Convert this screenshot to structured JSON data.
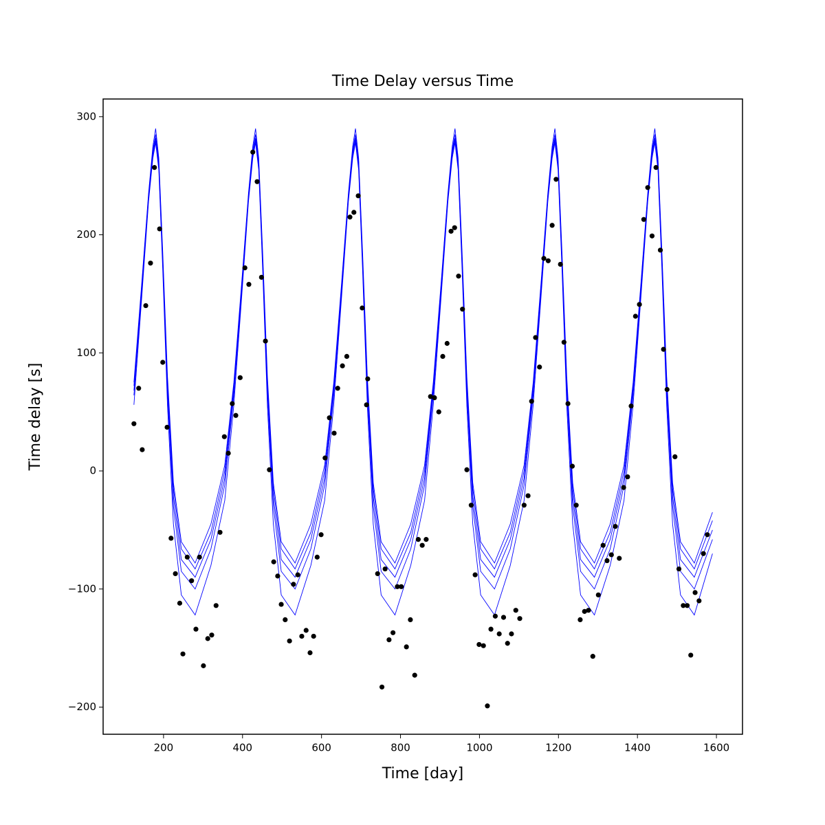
{
  "chart_data": {
    "type": "scatter",
    "title": "Time Delay versus Time",
    "x_label": "Time [day]",
    "y_label": "Time delay [s]",
    "xlim": [
      47,
      1666
    ],
    "ylim": [
      -223,
      315
    ],
    "xticks": [
      200,
      400,
      600,
      800,
      1000,
      1200,
      1400,
      1600
    ],
    "yticks": [
      {
        "value": -200,
        "label": "−200"
      },
      {
        "value": -100,
        "label": "−100"
      },
      0,
      100,
      200,
      300
    ],
    "points": {
      "color": "#000000",
      "x": [
        125,
        137,
        146,
        155,
        167,
        177,
        190,
        198,
        209,
        219,
        230,
        241,
        249,
        260,
        271,
        282,
        291,
        301,
        312,
        322,
        333,
        343,
        354,
        364,
        374,
        383,
        394,
        406,
        416,
        426,
        437,
        448,
        458,
        468,
        479,
        489,
        498,
        508,
        519,
        529,
        540,
        550,
        561,
        571,
        580,
        589,
        599,
        609,
        620,
        632,
        641,
        653,
        664,
        672,
        682,
        693,
        703,
        717,
        714,
        742,
        753,
        761,
        771,
        781,
        792,
        802,
        815,
        825,
        836,
        845,
        855,
        865,
        876,
        886,
        897,
        907,
        918,
        928,
        937,
        947,
        957,
        968,
        979,
        989,
        999,
        1010,
        1020,
        1029,
        1040,
        1050,
        1061,
        1071,
        1081,
        1092,
        1102,
        1113,
        1123,
        1132,
        1142,
        1152,
        1163,
        1174,
        1184,
        1194,
        1205,
        1214,
        1224,
        1235,
        1245,
        1255,
        1266,
        1276,
        1287,
        1301,
        1313,
        1323,
        1334,
        1344,
        1354,
        1365,
        1375,
        1384,
        1395,
        1405,
        1416,
        1426,
        1437,
        1447,
        1458,
        1466,
        1475,
        1495,
        1505,
        1516,
        1526,
        1535,
        1546,
        1556,
        1567,
        1577
      ],
      "y": [
        40,
        70,
        18,
        140,
        176,
        257,
        205,
        92,
        37,
        -57,
        -87,
        -112,
        -155,
        -73,
        -93,
        -134,
        -73,
        -165,
        -142,
        -139,
        -114,
        -52,
        29,
        15,
        57,
        47,
        79,
        172,
        158,
        270,
        245,
        164,
        110,
        1,
        -77,
        -89,
        -113,
        -126,
        -144,
        -96,
        -88,
        -140,
        -135,
        -154,
        -140,
        -73,
        -54,
        11,
        45,
        32,
        70,
        89,
        97,
        215,
        219,
        233,
        138,
        78,
        56,
        -87,
        -183,
        -83,
        -143,
        -137,
        -98,
        -98,
        -149,
        -126,
        -173,
        -58,
        -63,
        -58,
        63,
        62,
        50,
        97,
        108,
        203,
        206,
        165,
        137,
        1,
        -29,
        -88,
        -147,
        -148,
        -199,
        -134,
        -123,
        -138,
        -124,
        -146,
        -138,
        -118,
        -125,
        -29,
        -21,
        59,
        113,
        88,
        180,
        178,
        208,
        247,
        175,
        109,
        57,
        4,
        -29,
        -126,
        -119,
        -118,
        -157,
        -105,
        -63,
        -76,
        -71,
        -47,
        -74,
        -14,
        -5,
        55,
        131,
        141,
        213,
        240,
        199,
        257,
        187,
        103,
        69,
        12,
        -83,
        -114,
        -114,
        -156,
        -103,
        -110,
        -70,
        -54
      ]
    },
    "curves": {
      "x": [
        125,
        145,
        162,
        173,
        180,
        188,
        198,
        210,
        225,
        245,
        280,
        320,
        355,
        378,
        398,
        415,
        426,
        433,
        441,
        451,
        463,
        478,
        498,
        533,
        573,
        608,
        631,
        651,
        668,
        679,
        686,
        694,
        704,
        716,
        731,
        751,
        786,
        826,
        861,
        883,
        903,
        920,
        931,
        938,
        946,
        956,
        968,
        983,
        1003,
        1038,
        1078,
        1113,
        1136,
        1156,
        1173,
        1184,
        1191,
        1199,
        1209,
        1221,
        1236,
        1256,
        1291,
        1331,
        1366,
        1389,
        1409,
        1426,
        1437,
        1444,
        1452,
        1462,
        1474,
        1489,
        1509,
        1544,
        1590
      ],
      "series": [
        {
          "color": "#0000ff",
          "values": [
            75,
            160,
            235,
            275,
            290,
            265,
            185,
            80,
            -10,
            -60,
            -78,
            -45,
            5,
            75,
            160,
            235,
            275,
            290,
            265,
            185,
            80,
            -10,
            -60,
            -78,
            -45,
            5,
            75,
            160,
            235,
            275,
            290,
            265,
            185,
            80,
            -10,
            -60,
            -78,
            -45,
            5,
            75,
            160,
            235,
            275,
            290,
            265,
            185,
            80,
            -10,
            -60,
            -78,
            -45,
            5,
            75,
            160,
            235,
            275,
            290,
            265,
            185,
            80,
            -10,
            -60,
            -78,
            -45,
            5,
            75,
            160,
            235,
            275,
            290,
            265,
            185,
            80,
            -10,
            -60,
            -78,
            -35
          ]
        },
        {
          "color": "#0000ff",
          "values": [
            72,
            158,
            233,
            272,
            285,
            262,
            180,
            75,
            -15,
            -66,
            -83,
            -52,
            0,
            72,
            158,
            233,
            272,
            285,
            262,
            180,
            75,
            -15,
            -66,
            -83,
            -52,
            0,
            72,
            158,
            233,
            272,
            285,
            262,
            180,
            75,
            -15,
            -66,
            -83,
            -52,
            0,
            72,
            158,
            233,
            272,
            285,
            262,
            180,
            75,
            -15,
            -66,
            -83,
            -52,
            0,
            72,
            158,
            233,
            272,
            285,
            262,
            180,
            75,
            -15,
            -66,
            -83,
            -52,
            0,
            72,
            158,
            233,
            272,
            285,
            262,
            180,
            75,
            -15,
            -66,
            -83,
            -42
          ]
        },
        {
          "color": "#0000ff",
          "values": [
            68,
            155,
            232,
            270,
            282,
            260,
            178,
            70,
            -22,
            -75,
            -90,
            -58,
            -6,
            68,
            155,
            232,
            270,
            282,
            260,
            178,
            70,
            -22,
            -75,
            -90,
            -58,
            -6,
            68,
            155,
            232,
            270,
            282,
            260,
            178,
            70,
            -22,
            -75,
            -90,
            -58,
            -6,
            68,
            155,
            232,
            270,
            282,
            260,
            178,
            70,
            -22,
            -75,
            -90,
            -58,
            -6,
            68,
            155,
            232,
            270,
            282,
            260,
            178,
            70,
            -22,
            -75,
            -90,
            -58,
            -6,
            68,
            155,
            232,
            270,
            282,
            260,
            178,
            70,
            -22,
            -75,
            -90,
            -50
          ]
        },
        {
          "color": "#0000ff",
          "values": [
            64,
            152,
            230,
            268,
            280,
            258,
            175,
            65,
            -30,
            -85,
            -100,
            -66,
            -12,
            64,
            152,
            230,
            268,
            280,
            258,
            175,
            65,
            -30,
            -85,
            -100,
            -66,
            -12,
            64,
            152,
            230,
            268,
            280,
            258,
            175,
            65,
            -30,
            -85,
            -100,
            -66,
            -12,
            64,
            152,
            230,
            268,
            280,
            258,
            175,
            65,
            -30,
            -85,
            -100,
            -66,
            -12,
            64,
            152,
            230,
            268,
            280,
            258,
            175,
            65,
            -30,
            -85,
            -100,
            -66,
            -12,
            64,
            152,
            230,
            268,
            280,
            258,
            175,
            65,
            -30,
            -85,
            -100,
            -58
          ]
        },
        {
          "color": "#0000ff",
          "values": [
            56,
            148,
            228,
            265,
            278,
            255,
            170,
            55,
            -45,
            -105,
            -122,
            -80,
            -25,
            56,
            148,
            228,
            265,
            278,
            255,
            170,
            55,
            -45,
            -105,
            -122,
            -80,
            -25,
            56,
            148,
            228,
            265,
            278,
            255,
            170,
            55,
            -45,
            -105,
            -122,
            -80,
            -25,
            56,
            148,
            228,
            265,
            278,
            255,
            170,
            55,
            -45,
            -105,
            -122,
            -80,
            -25,
            56,
            148,
            228,
            265,
            278,
            255,
            170,
            55,
            -45,
            -105,
            -122,
            -80,
            -25,
            56,
            148,
            228,
            265,
            278,
            255,
            170,
            55,
            -45,
            -105,
            -122,
            -70
          ]
        }
      ]
    }
  }
}
